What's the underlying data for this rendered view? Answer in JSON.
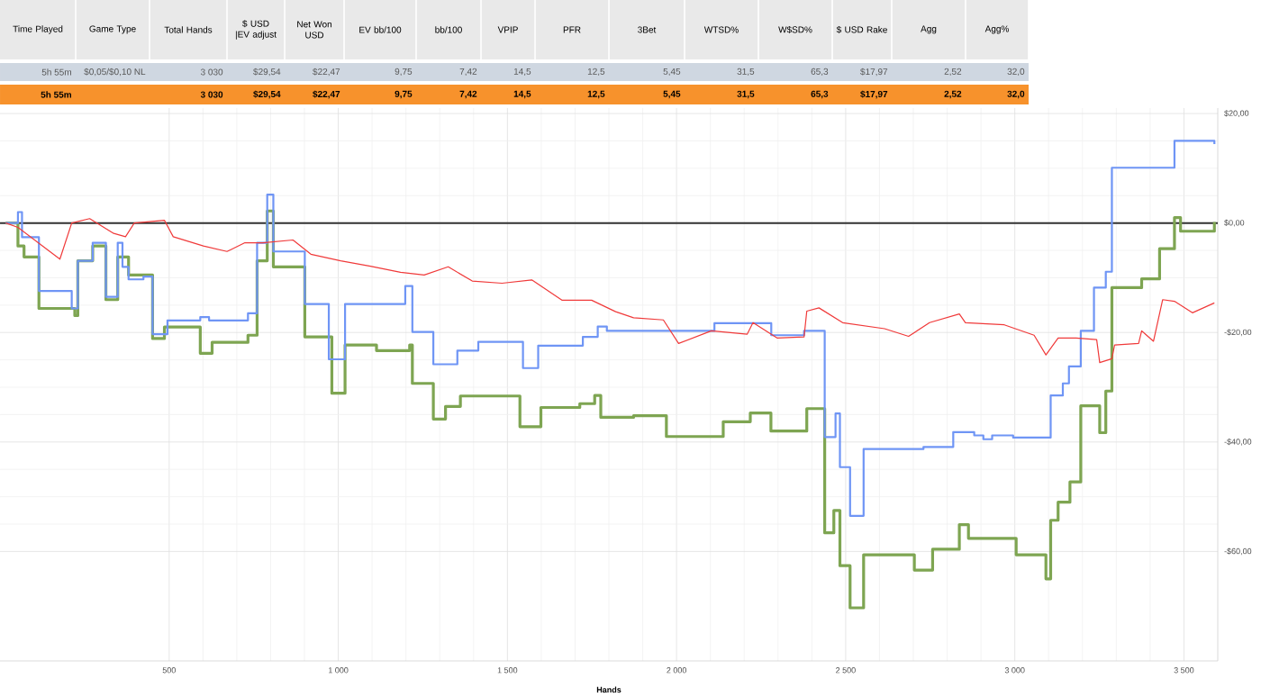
{
  "chart_data": [
    {
      "type": "other",
      "categories": [
        "Time Played",
        "Game Type",
        "Total Hands",
        "$ USD |EV adjust",
        "Net Won USD",
        "EV bb/100",
        "bb/100",
        "VPIP",
        "PFR",
        "3Bet",
        "WTSD%",
        "W$SD%",
        "$ USD Rake",
        "Agg",
        "Agg%"
      ],
      "cell_labels": [
        [
          "5h 55m",
          "$0,05/$0,10 NL",
          "3 030",
          "$29,54",
          "$22,47",
          "9,75",
          "7,42",
          "14,5",
          "12,5",
          "5,45",
          "31,5",
          "65,3",
          "$17,97",
          "2,52",
          "32,0"
        ],
        [
          "5h 55m",
          null,
          "3 030",
          "$29,54",
          "$22,47",
          "9,75",
          "7,42",
          "14,5",
          "12,5",
          "5,45",
          "31,5",
          "65,3",
          "$17,97",
          "2,52",
          "32,0"
        ]
      ]
    },
    {
      "type": "line",
      "xlabel": "Hands",
      "grid": true,
      "xlim": [
        0,
        3600
      ],
      "xticks": [
        500,
        {
          "value": 1000,
          "label": "1 000"
        },
        {
          "value": 1500,
          "label": "1 500"
        },
        {
          "value": 2000,
          "label": "2 000"
        },
        {
          "value": 2500,
          "label": "2 500"
        },
        {
          "value": 3000,
          "label": "3 000"
        },
        {
          "value": 3500,
          "label": "3 500"
        }
      ],
      "ylim": [
        -80,
        21
      ],
      "yticks": [
        {
          "value": -60,
          "label": "-$60,00"
        },
        {
          "value": -40,
          "label": "-$40,00"
        },
        {
          "value": -20,
          "label": "-$20,00"
        },
        {
          "value": 0,
          "label": "$0,00"
        },
        {
          "value": 20,
          "label": "$20,00"
        }
      ],
      "ref_lines": [
        {
          "axis": "y",
          "value": 0,
          "color": "#333333"
        }
      ],
      "series": [
        {
          "type": "step",
          "color": "#7ea552",
          "x": [
            17,
            53,
            71,
            115,
            221,
            230,
            274,
            313,
            348,
            380,
            451,
            486,
            592,
            627,
            733,
            760,
            790,
            808,
            901,
            981,
            1020,
            1113,
            1211,
            1219,
            1281,
            1317,
            1361,
            1537,
            1599,
            1714,
            1758,
            1776,
            1873,
            1970,
            2138,
            2218,
            2279,
            2385,
            2438,
            2465,
            2483,
            2513,
            2553,
            2703,
            2757,
            2836,
            2863,
            3004,
            3092,
            3106,
            3128,
            3163,
            3195,
            3251,
            3269,
            3287,
            3375,
            3428,
            3472,
            3490,
            3590
          ],
          "values": [
            0,
            -4.2,
            -6.2,
            -15.6,
            -16.9,
            -6.9,
            -4.2,
            -14,
            -6.2,
            -9.5,
            -21.1,
            -19,
            -23.8,
            -21.8,
            -20.5,
            -6.9,
            2.2,
            -8,
            -20.8,
            -31.1,
            -22.3,
            -23.3,
            -22.3,
            -29.3,
            -35.8,
            -33.5,
            -31.6,
            -37.2,
            -33.7,
            -33,
            -31.5,
            -35.5,
            -35.2,
            -39,
            -36.3,
            -34.7,
            -38,
            -33.9,
            -56.6,
            -52.5,
            -62.6,
            -70.3,
            -60.6,
            -63.4,
            -59.6,
            -55.1,
            -57.6,
            -60.6,
            -65,
            -54.3,
            -51,
            -47.3,
            -33.4,
            -38.3,
            -30.7,
            -11.8,
            -10.2,
            -4.7,
            1,
            -1.5,
            0.2
          ]
        },
        {
          "type": "step",
          "color": "#6f95f5",
          "x": [
            17,
            53,
            65,
            115,
            212,
            230,
            274,
            313,
            348,
            362,
            380,
            424,
            451,
            495,
            592,
            618,
            733,
            760,
            790,
            808,
            901,
            972,
            1020,
            1198,
            1219,
            1281,
            1352,
            1414,
            1546,
            1591,
            1723,
            1767,
            1794,
            2112,
            2280,
            2377,
            2438,
            2470,
            2483,
            2513,
            2553,
            2730,
            2818,
            2880,
            2907,
            2933,
            2995,
            3106,
            3142,
            3160,
            3195,
            3234,
            3269,
            3287,
            3472,
            3590
          ],
          "values": [
            0,
            2,
            -2.6,
            -12.4,
            -15.6,
            -6.9,
            -3.6,
            -13.5,
            -3.6,
            -8,
            -10.3,
            -9.8,
            -20.3,
            -17.8,
            -17.2,
            -17.8,
            -16.5,
            -3.6,
            5.2,
            -5.2,
            -14.8,
            -24.9,
            -14.8,
            -11.5,
            -19.9,
            -25.8,
            -23.3,
            -21.7,
            -26.5,
            -22.4,
            -20.8,
            -18.9,
            -19.7,
            -18.3,
            -20.5,
            -19.7,
            -39.1,
            -34.8,
            -44.6,
            -53.5,
            -41.3,
            -40.9,
            -38.2,
            -38.8,
            -39.5,
            -38.8,
            -39.2,
            -31.5,
            -29.3,
            -26.2,
            -19.7,
            -11.8,
            -8.9,
            10.1,
            15,
            14.4
          ]
        },
        {
          "type": "line",
          "color": "#f03a3a",
          "x": [
            17,
            53,
            177,
            212,
            265,
            336,
            371,
            397,
            486,
            512,
            601,
            671,
            724,
            777,
            866,
            919,
            1007,
            1095,
            1184,
            1254,
            1325,
            1396,
            1484,
            1572,
            1661,
            1749,
            1820,
            1873,
            1961,
            2006,
            2103,
            2209,
            2226,
            2297,
            2377,
            2385,
            2421,
            2491,
            2615,
            2686,
            2748,
            2836,
            2854,
            2969,
            3057,
            3092,
            3128,
            3181,
            3242,
            3251,
            3287,
            3295,
            3366,
            3375,
            3410,
            3437,
            3472,
            3525,
            3590
          ],
          "values": [
            0,
            -0.8,
            -6.6,
            0,
            0.8,
            -1.9,
            -2.5,
            0,
            0.5,
            -2.5,
            -4.2,
            -5.2,
            -3.6,
            -3.6,
            -3.1,
            -5.7,
            -6.9,
            -7.9,
            -9,
            -9.5,
            -8,
            -10.6,
            -11,
            -10.4,
            -14.1,
            -14.1,
            -16.2,
            -17.3,
            -17.7,
            -22,
            -19.7,
            -20.3,
            -18.2,
            -21,
            -20.8,
            -16.1,
            -15.5,
            -18.2,
            -19.3,
            -20.7,
            -18.2,
            -16.6,
            -18.2,
            -18.6,
            -20.5,
            -24.1,
            -21,
            -21,
            -21.3,
            -25.5,
            -24.8,
            -22.3,
            -22,
            -19.7,
            -21.6,
            -14,
            -14.3,
            -16.4,
            -14.6
          ]
        }
      ]
    }
  ]
}
